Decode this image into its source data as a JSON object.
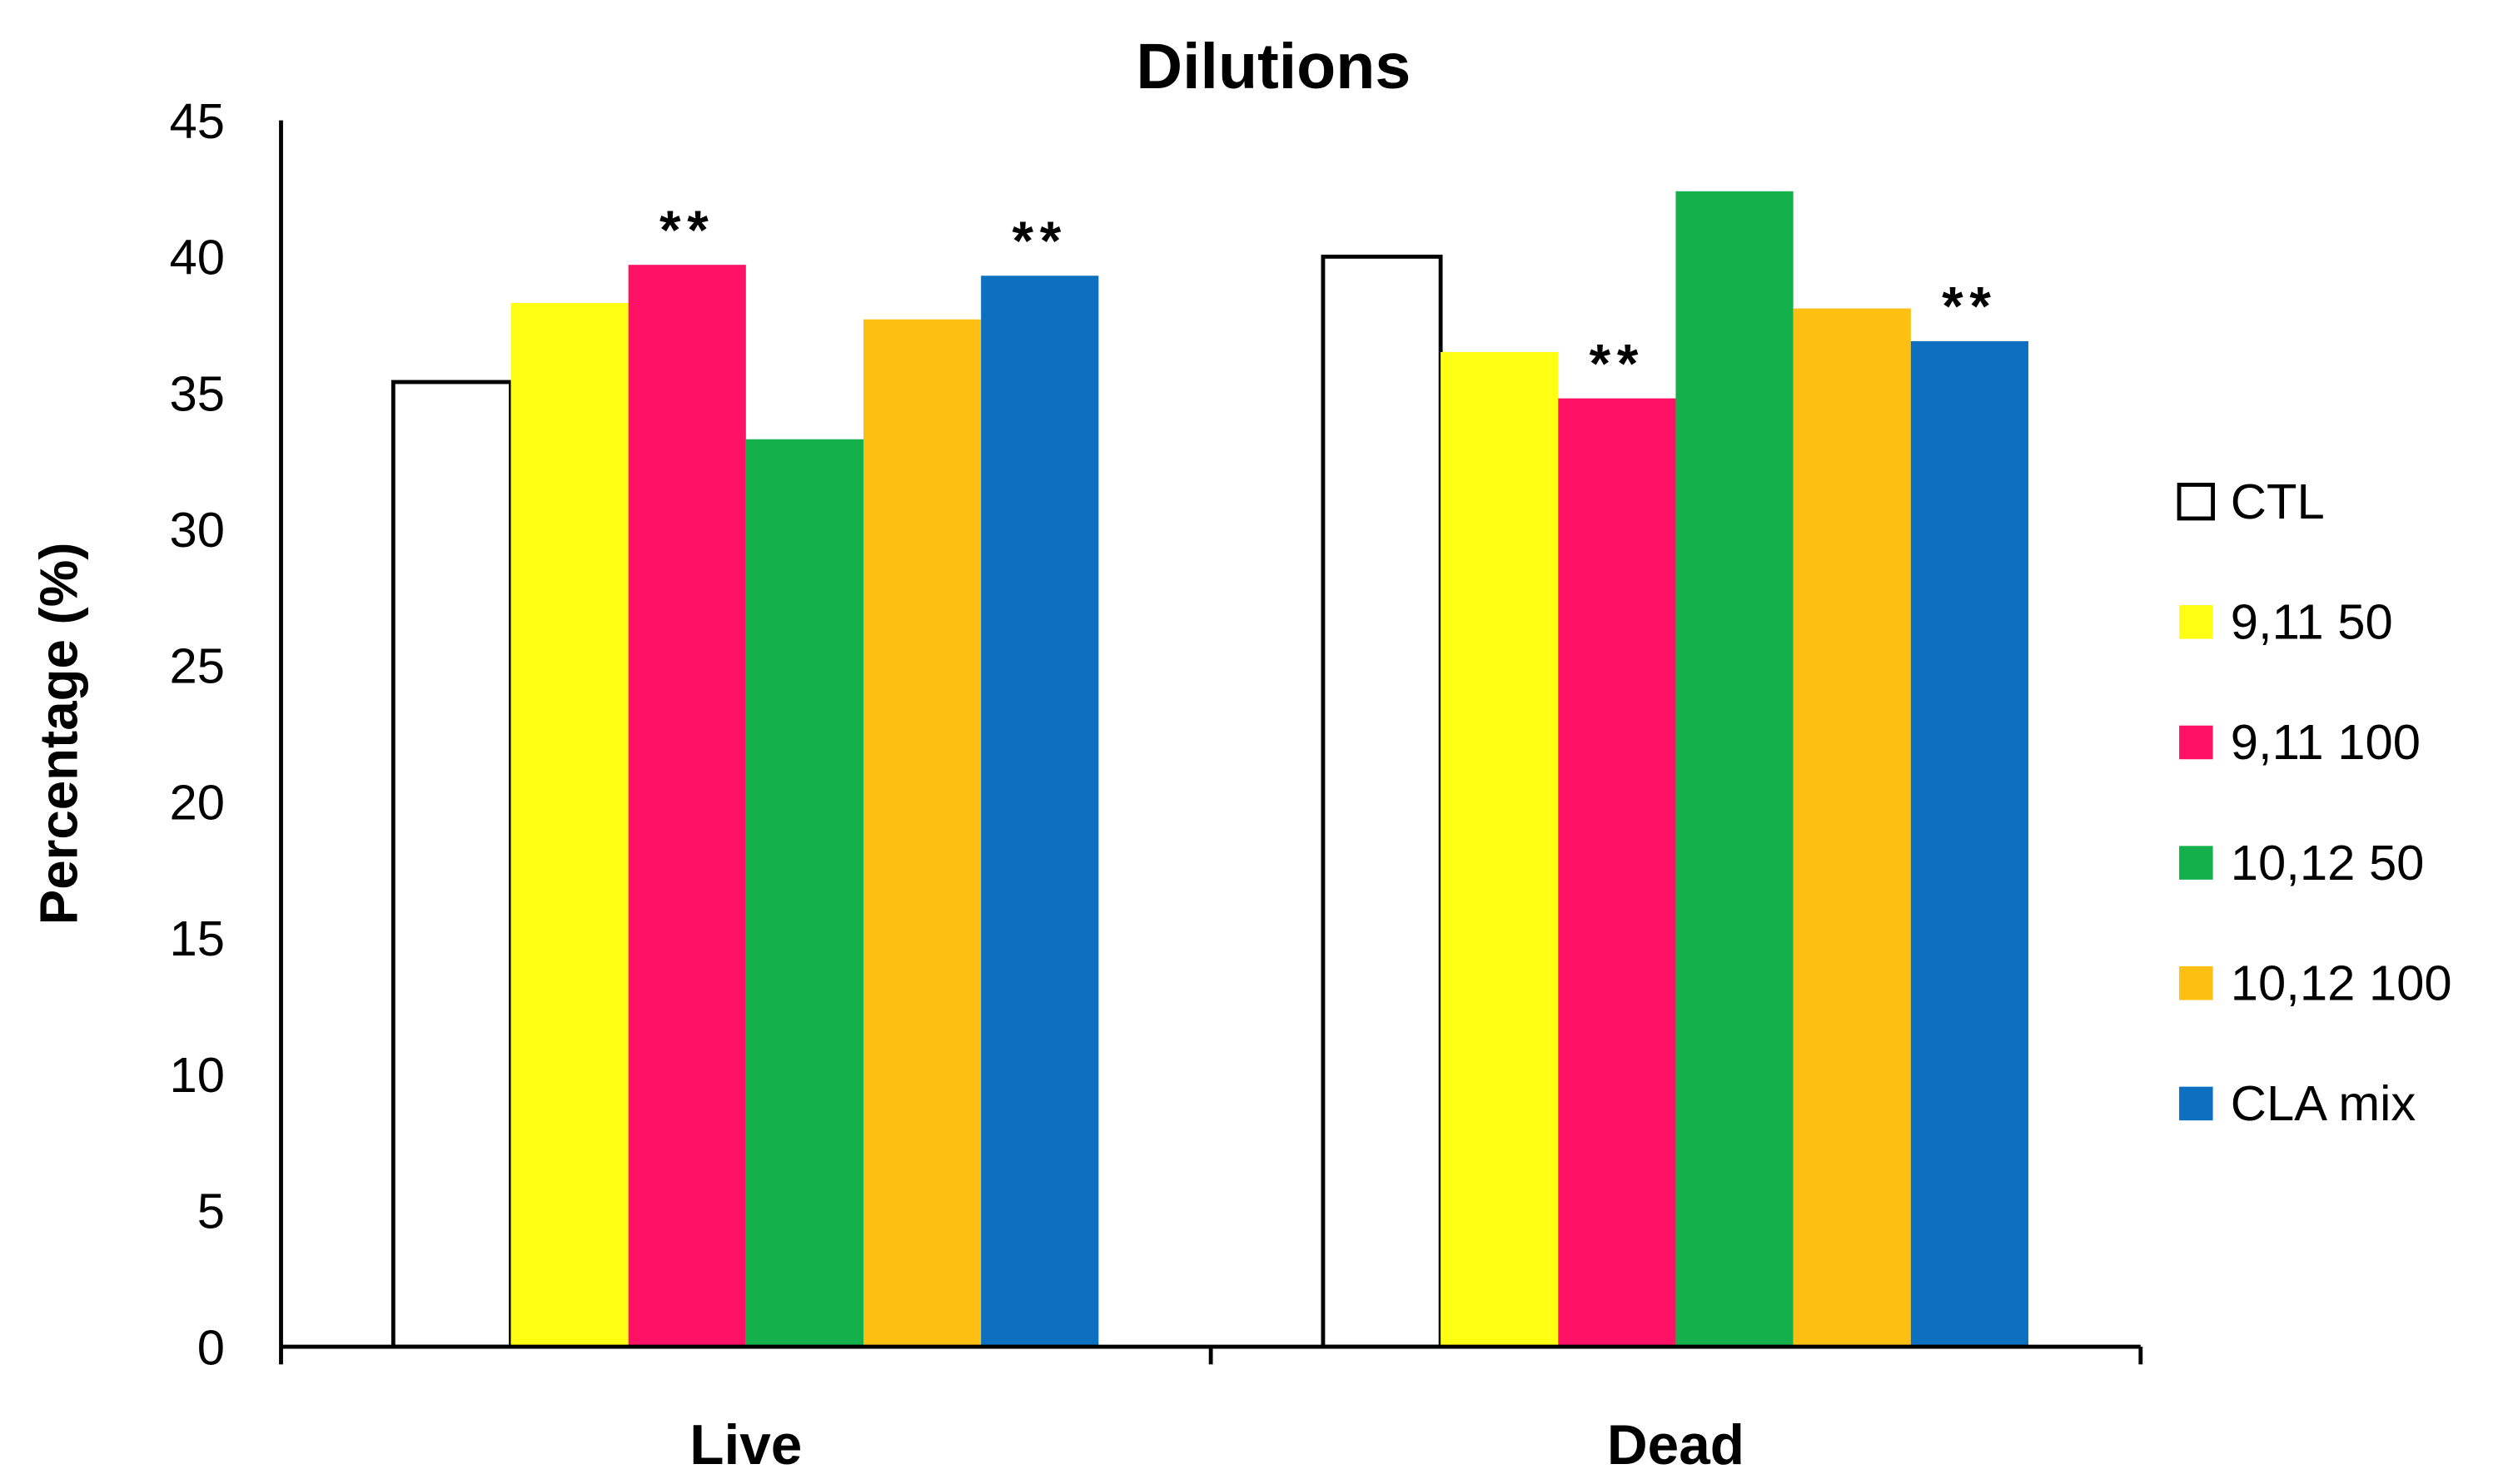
{
  "chart_data": {
    "type": "bar",
    "title": "Dilutions",
    "xlabel": "",
    "ylabel": "Percentage (%)",
    "ylim": [
      0,
      45
    ],
    "yticks": [
      "0",
      "5",
      "10",
      "15",
      "20",
      "25",
      "30",
      "35",
      "40",
      "45"
    ],
    "categories": [
      "Live",
      "Dead"
    ],
    "grid": false,
    "legend_position": "right",
    "series": [
      {
        "name": "CTL",
        "color": "#FFFFFF",
        "values": [
          35.4,
          40.0
        ],
        "annotations": [
          "",
          ""
        ]
      },
      {
        "name": "9,11 50",
        "color": "#FFFF14",
        "values": [
          38.3,
          36.5
        ],
        "annotations": [
          "",
          ""
        ]
      },
      {
        "name": "9,11 100",
        "color": "#FF1166",
        "values": [
          39.7,
          34.8
        ],
        "annotations": [
          "**",
          "**"
        ]
      },
      {
        "name": "10,12 50",
        "color": "#14B04C",
        "values": [
          33.3,
          42.4
        ],
        "annotations": [
          "",
          ""
        ]
      },
      {
        "name": "10,12 100",
        "color": "#FDBF12",
        "values": [
          37.7,
          38.1
        ],
        "annotations": [
          "",
          ""
        ]
      },
      {
        "name": "CLA mix",
        "color": "#0D6FC0",
        "values": [
          39.3,
          36.9
        ],
        "annotations": [
          "**",
          "**"
        ]
      }
    ]
  }
}
